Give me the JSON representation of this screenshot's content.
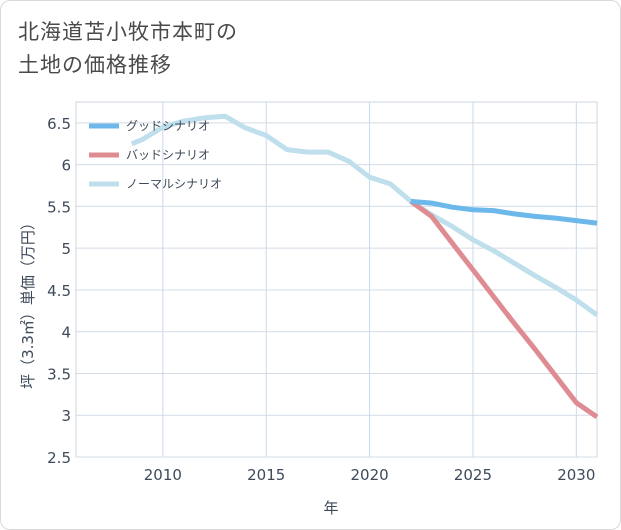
{
  "title_line1": "北海道苫小牧市本町の",
  "title_line2": "土地の価格推移",
  "chart_data": {
    "type": "line",
    "xlabel": "年",
    "ylabel": "坪（3.3㎡）単価（万円）",
    "xlim": [
      2005.8,
      2031
    ],
    "ylim": [
      2.5,
      6.75
    ],
    "xticks": [
      2010,
      2015,
      2020,
      2025,
      2030
    ],
    "yticks": [
      2.5,
      3,
      3.5,
      4,
      4.5,
      5,
      5.5,
      6,
      6.5
    ],
    "ytick_labels": [
      "2.5",
      "3",
      "3.5",
      "4",
      "4.5",
      "5",
      "5.5",
      "6",
      "6.5"
    ],
    "grid": true,
    "legend_position": "top-left",
    "series": [
      {
        "name": "グッドシナリオ",
        "color": "#6cb8ea",
        "points": [
          [
            2022,
            5.56
          ],
          [
            2023,
            5.54
          ],
          [
            2024,
            5.49
          ],
          [
            2025,
            5.46
          ],
          [
            2026,
            5.45
          ],
          [
            2027,
            5.41
          ],
          [
            2028,
            5.38
          ],
          [
            2029,
            5.36
          ],
          [
            2030,
            5.33
          ],
          [
            2031,
            5.3
          ]
        ]
      },
      {
        "name": "バッドシナリオ",
        "color": "#de8c92",
        "points": [
          [
            2022,
            5.56
          ],
          [
            2023,
            5.38
          ],
          [
            2024,
            5.06
          ],
          [
            2025,
            4.74
          ],
          [
            2026,
            4.42
          ],
          [
            2027,
            4.1
          ],
          [
            2028,
            3.79
          ],
          [
            2029,
            3.47
          ],
          [
            2030,
            3.15
          ],
          [
            2031,
            2.98
          ]
        ]
      },
      {
        "name": "ノーマルシナリオ",
        "color": "#bfdfec",
        "points": [
          [
            2008.5,
            6.25
          ],
          [
            2009,
            6.3
          ],
          [
            2010,
            6.45
          ],
          [
            2011,
            6.52
          ],
          [
            2012,
            6.56
          ],
          [
            2013,
            6.58
          ],
          [
            2014,
            6.44
          ],
          [
            2015,
            6.35
          ],
          [
            2016,
            6.18
          ],
          [
            2017,
            6.15
          ],
          [
            2018,
            6.15
          ],
          [
            2019,
            6.04
          ],
          [
            2020,
            5.85
          ],
          [
            2021,
            5.77
          ],
          [
            2022,
            5.56
          ],
          [
            2023,
            5.4
          ],
          [
            2024,
            5.26
          ],
          [
            2025,
            5.1
          ],
          [
            2026,
            4.97
          ],
          [
            2027,
            4.82
          ],
          [
            2028,
            4.67
          ],
          [
            2029,
            4.53
          ],
          [
            2030,
            4.38
          ],
          [
            2031,
            4.2
          ]
        ]
      }
    ]
  }
}
